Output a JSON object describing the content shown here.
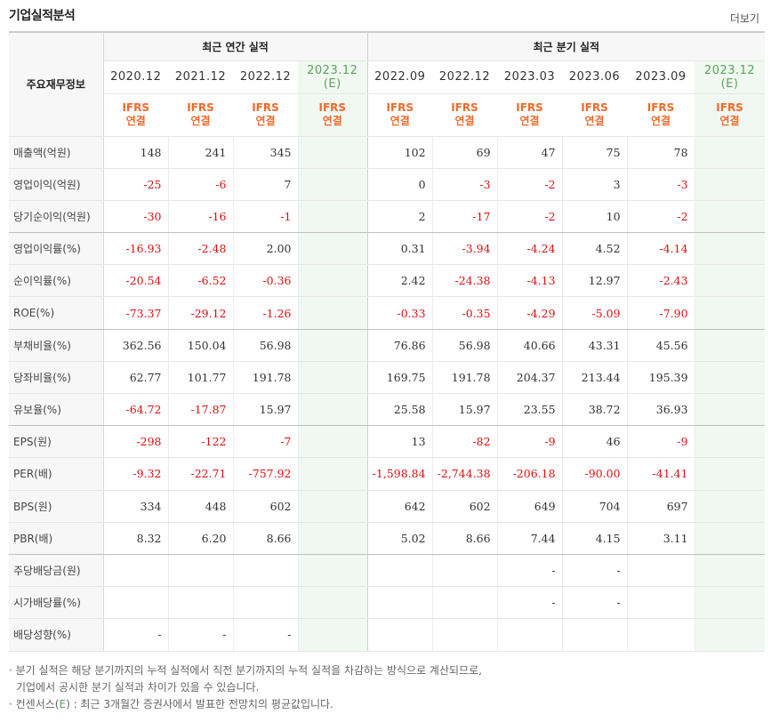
{
  "section_title": "기업실적분석",
  "more_label": "더보기",
  "header": {
    "row_label": "주요재무정보",
    "annual_label": "최근 연간 실적",
    "quarter_label": "최근 분기 실적",
    "annual_periods": [
      "2020.12",
      "2021.12",
      "2022.12"
    ],
    "annual_est_period": "2023.12",
    "annual_est_tag": "(E)",
    "quarter_periods": [
      "2022.09",
      "2022.12",
      "2023.03",
      "2023.06",
      "2023.09"
    ],
    "quarter_est_period": "2023.12",
    "quarter_est_tag": "(E)",
    "basis_line1": "IFRS",
    "basis_line2": "연결"
  },
  "rows": [
    {
      "label": "매출액(억원)",
      "values": [
        "148",
        "241",
        "345",
        "",
        "102",
        "69",
        "47",
        "75",
        "78",
        ""
      ]
    },
    {
      "label": "영업이익(억원)",
      "values": [
        "-25",
        "-6",
        "7",
        "",
        "0",
        "-3",
        "-2",
        "3",
        "-3",
        ""
      ]
    },
    {
      "label": "당기순이익(억원)",
      "values": [
        "-30",
        "-16",
        "-1",
        "",
        "2",
        "-17",
        "-2",
        "10",
        "-2",
        ""
      ]
    },
    {
      "label": "영업이익률(%)",
      "values": [
        "-16.93",
        "-2.48",
        "2.00",
        "",
        "0.31",
        "-3.94",
        "-4.24",
        "4.52",
        "-4.14",
        ""
      ]
    },
    {
      "label": "순이익률(%)",
      "values": [
        "-20.54",
        "-6.52",
        "-0.36",
        "",
        "2.42",
        "-24.38",
        "-4.13",
        "12.97",
        "-2.43",
        ""
      ]
    },
    {
      "label": "ROE(%)",
      "values": [
        "-73.37",
        "-29.12",
        "-1.26",
        "",
        "-0.33",
        "-0.35",
        "-4.29",
        "-5.09",
        "-7.90",
        ""
      ]
    },
    {
      "label": "부채비율(%)",
      "values": [
        "362.56",
        "150.04",
        "56.98",
        "",
        "76.86",
        "56.98",
        "40.66",
        "43.31",
        "45.56",
        ""
      ]
    },
    {
      "label": "당좌비율(%)",
      "values": [
        "62.77",
        "101.77",
        "191.78",
        "",
        "169.75",
        "191.78",
        "204.37",
        "213.44",
        "195.39",
        ""
      ]
    },
    {
      "label": "유보율(%)",
      "values": [
        "-64.72",
        "-17.87",
        "15.97",
        "",
        "25.58",
        "15.97",
        "23.55",
        "38.72",
        "36.93",
        ""
      ]
    },
    {
      "label": "EPS(원)",
      "values": [
        "-298",
        "-122",
        "-7",
        "",
        "13",
        "-82",
        "-9",
        "46",
        "-9",
        ""
      ]
    },
    {
      "label": "PER(배)",
      "values": [
        "-9.32",
        "-22.71",
        "-757.92",
        "",
        "-1,598.84",
        "-2,744.38",
        "-206.18",
        "-90.00",
        "-41.41",
        ""
      ]
    },
    {
      "label": "BPS(원)",
      "values": [
        "334",
        "448",
        "602",
        "",
        "642",
        "602",
        "649",
        "704",
        "697",
        ""
      ]
    },
    {
      "label": "PBR(배)",
      "values": [
        "8.32",
        "6.20",
        "8.66",
        "",
        "5.02",
        "8.66",
        "7.44",
        "4.15",
        "3.11",
        ""
      ]
    },
    {
      "label": "주당배당금(원)",
      "values": [
        "",
        "",
        "",
        "",
        "",
        "",
        "-",
        "-",
        "",
        ""
      ]
    },
    {
      "label": "시가배당률(%)",
      "values": [
        "",
        "",
        "",
        "",
        "",
        "",
        "-",
        "-",
        "",
        ""
      ]
    },
    {
      "label": "배당성향(%)",
      "values": [
        "-",
        "-",
        "-",
        "",
        "",
        "",
        "",
        "",
        "",
        ""
      ]
    }
  ],
  "notes": {
    "line1": "· 분기 실적은 해당 분기까지의 누적 실적에서 직전 분기까지의 누적 실적을 차감하는 방식으로 계산되므로,",
    "line2": "기업에서 공시한 분기 실적과 차이가 있을 수 있습니다.",
    "line3_pre": "· 컨센서스(",
    "line3_e": "E",
    "line3_post": ") : 최근 3개월간 증권사에서 발표한 전망치의 평균값입니다."
  }
}
